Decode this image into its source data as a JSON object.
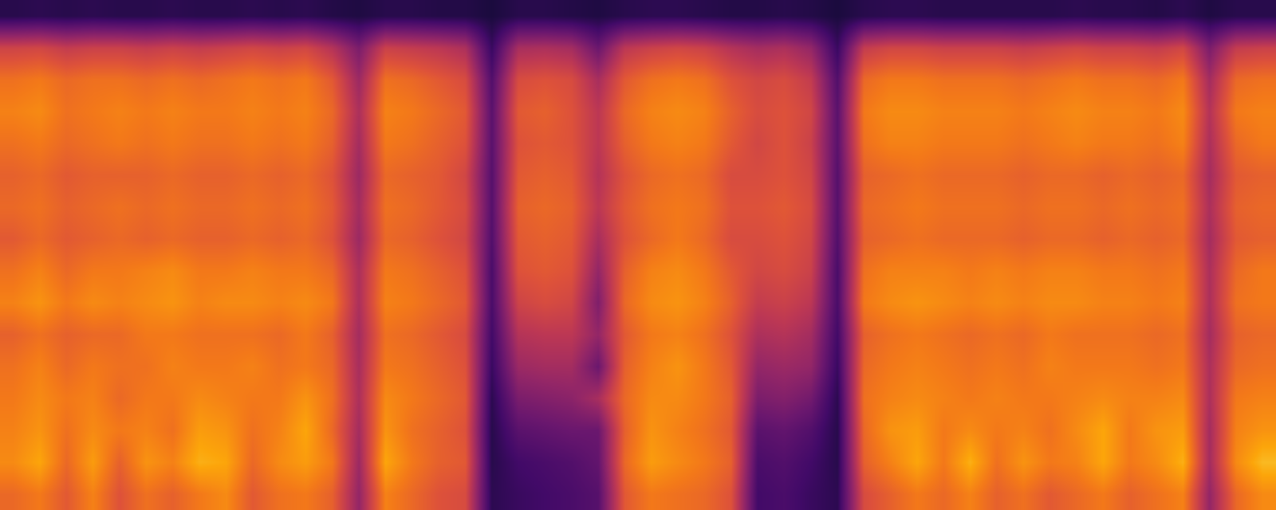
{
  "chart_data": {
    "type": "heatmap",
    "tick_labels": false,
    "zlim": [
      0,
      100
    ],
    "cells": [
      [
        66,
        70,
        62,
        72,
        60,
        68,
        64,
        70,
        74,
        62,
        68,
        70,
        64,
        40,
        72,
        66,
        60,
        58,
        15,
        18,
        20,
        22,
        25,
        62,
        70,
        68,
        66,
        60,
        20,
        22,
        18,
        15,
        58,
        64,
        70,
        66,
        72,
        64,
        68,
        62,
        66,
        70,
        64,
        68,
        72,
        40,
        66,
        74
      ],
      [
        74,
        80,
        66,
        78,
        64,
        76,
        72,
        82,
        80,
        66,
        74,
        78,
        70,
        42,
        80,
        70,
        64,
        62,
        14,
        20,
        22,
        24,
        28,
        66,
        78,
        74,
        70,
        64,
        22,
        24,
        20,
        14,
        64,
        72,
        80,
        70,
        82,
        68,
        76,
        70,
        72,
        80,
        70,
        74,
        82,
        44,
        74,
        84
      ],
      [
        72,
        76,
        68,
        74,
        70,
        72,
        68,
        78,
        76,
        68,
        72,
        80,
        66,
        44,
        76,
        68,
        64,
        60,
        14,
        26,
        28,
        30,
        30,
        64,
        76,
        72,
        68,
        62,
        26,
        28,
        24,
        14,
        66,
        76,
        78,
        70,
        74,
        70,
        72,
        68,
        74,
        80,
        70,
        76,
        78,
        44,
        72,
        76
      ],
      [
        70,
        74,
        70,
        72,
        66,
        70,
        70,
        74,
        72,
        70,
        70,
        76,
        68,
        46,
        74,
        70,
        66,
        62,
        15,
        34,
        36,
        38,
        45,
        66,
        74,
        74,
        70,
        64,
        34,
        36,
        32,
        15,
        68,
        72,
        74,
        72,
        70,
        72,
        70,
        70,
        72,
        74,
        72,
        72,
        74,
        46,
        70,
        72
      ],
      [
        68,
        72,
        66,
        70,
        68,
        68,
        72,
        70,
        70,
        72,
        68,
        70,
        66,
        45,
        70,
        68,
        64,
        60,
        18,
        42,
        44,
        44,
        30,
        64,
        72,
        76,
        70,
        62,
        40,
        42,
        40,
        18,
        66,
        70,
        72,
        70,
        68,
        70,
        68,
        72,
        70,
        70,
        70,
        68,
        70,
        46,
        66,
        68
      ],
      [
        64,
        68,
        64,
        66,
        66,
        70,
        70,
        68,
        68,
        68,
        66,
        70,
        64,
        44,
        68,
        66,
        62,
        58,
        20,
        48,
        50,
        50,
        40,
        62,
        70,
        72,
        68,
        60,
        46,
        48,
        44,
        20,
        64,
        68,
        70,
        68,
        66,
        68,
        66,
        70,
        68,
        68,
        68,
        66,
        68,
        44,
        64,
        66
      ],
      [
        72,
        76,
        70,
        74,
        72,
        74,
        76,
        72,
        74,
        74,
        72,
        74,
        70,
        46,
        72,
        70,
        66,
        62,
        22,
        55,
        58,
        56,
        35,
        66,
        74,
        76,
        72,
        64,
        52,
        54,
        50,
        22,
        70,
        74,
        76,
        74,
        72,
        74,
        72,
        74,
        74,
        72,
        72,
        70,
        72,
        46,
        68,
        70
      ],
      [
        68,
        72,
        66,
        70,
        70,
        72,
        74,
        70,
        70,
        72,
        70,
        70,
        66,
        46,
        70,
        68,
        64,
        60,
        22,
        60,
        62,
        60,
        40,
        64,
        72,
        74,
        70,
        62,
        56,
        58,
        54,
        22,
        68,
        72,
        72,
        72,
        70,
        72,
        70,
        72,
        72,
        70,
        70,
        68,
        70,
        46,
        66,
        70
      ],
      [
        62,
        66,
        62,
        64,
        66,
        64,
        66,
        64,
        64,
        66,
        64,
        66,
        60,
        42,
        66,
        64,
        60,
        56,
        24,
        62,
        64,
        62,
        45,
        60,
        66,
        70,
        66,
        58,
        58,
        60,
        56,
        24,
        64,
        66,
        68,
        66,
        66,
        66,
        64,
        66,
        66,
        64,
        66,
        64,
        66,
        44,
        62,
        64
      ],
      [
        66,
        68,
        64,
        66,
        68,
        66,
        68,
        66,
        66,
        68,
        66,
        68,
        62,
        44,
        68,
        66,
        62,
        58,
        25,
        64,
        66,
        64,
        50,
        62,
        68,
        70,
        68,
        60,
        60,
        62,
        58,
        25,
        66,
        68,
        70,
        68,
        68,
        68,
        66,
        68,
        68,
        66,
        68,
        66,
        68,
        46,
        64,
        66
      ],
      [
        64,
        66,
        62,
        64,
        64,
        64,
        66,
        64,
        64,
        66,
        64,
        66,
        60,
        42,
        66,
        64,
        62,
        56,
        25,
        62,
        64,
        62,
        48,
        60,
        66,
        68,
        66,
        58,
        58,
        60,
        56,
        25,
        64,
        66,
        68,
        66,
        66,
        66,
        64,
        66,
        66,
        64,
        66,
        64,
        66,
        44,
        62,
        64
      ],
      [
        68,
        70,
        66,
        68,
        70,
        68,
        70,
        68,
        68,
        70,
        68,
        70,
        64,
        44,
        70,
        68,
        64,
        60,
        26,
        60,
        62,
        60,
        50,
        64,
        70,
        72,
        70,
        62,
        56,
        60,
        54,
        26,
        68,
        72,
        72,
        70,
        70,
        70,
        68,
        70,
        72,
        70,
        70,
        68,
        72,
        46,
        66,
        70
      ],
      [
        72,
        74,
        68,
        70,
        72,
        70,
        72,
        70,
        70,
        72,
        70,
        72,
        66,
        46,
        72,
        70,
        66,
        62,
        26,
        62,
        64,
        60,
        50,
        66,
        72,
        74,
        72,
        64,
        58,
        60,
        56,
        26,
        70,
        74,
        74,
        72,
        72,
        72,
        70,
        72,
        74,
        72,
        72,
        70,
        74,
        48,
        70,
        72
      ],
      [
        68,
        70,
        66,
        68,
        68,
        66,
        68,
        66,
        68,
        70,
        68,
        70,
        62,
        42,
        68,
        66,
        62,
        58,
        24,
        58,
        60,
        58,
        45,
        62,
        68,
        70,
        68,
        60,
        56,
        58,
        52,
        24,
        66,
        70,
        70,
        68,
        68,
        68,
        66,
        68,
        70,
        68,
        68,
        66,
        70,
        44,
        66,
        68
      ],
      [
        55,
        56,
        52,
        54,
        54,
        52,
        54,
        52,
        54,
        56,
        54,
        56,
        48,
        34,
        54,
        52,
        50,
        46,
        18,
        45,
        46,
        44,
        30,
        50,
        54,
        56,
        54,
        48,
        44,
        46,
        40,
        18,
        52,
        56,
        56,
        54,
        54,
        54,
        52,
        54,
        56,
        54,
        54,
        52,
        56,
        34,
        52,
        54
      ],
      [
        14,
        15,
        14,
        15,
        14,
        14,
        15,
        14,
        14,
        15,
        14,
        15,
        13,
        12,
        14,
        14,
        13,
        13,
        11,
        14,
        14,
        13,
        12,
        14,
        15,
        15,
        14,
        13,
        13,
        14,
        13,
        11,
        14,
        15,
        15,
        14,
        14,
        14,
        14,
        14,
        15,
        14,
        14,
        13,
        15,
        12,
        14,
        14
      ]
    ]
  }
}
